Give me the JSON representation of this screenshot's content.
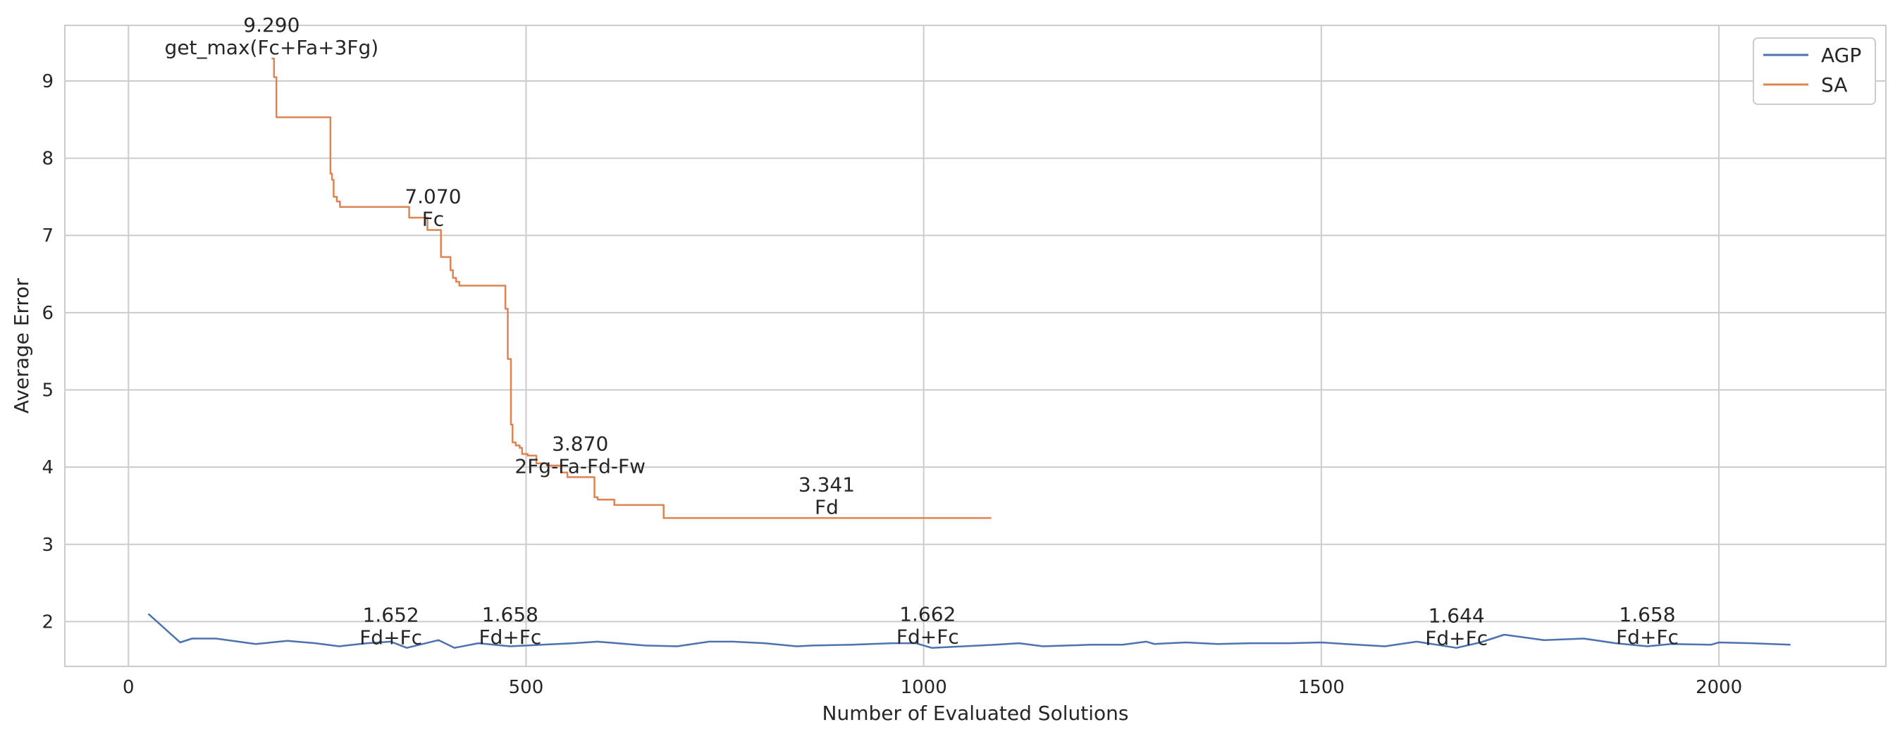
{
  "chart_data": {
    "type": "line",
    "title": "",
    "xlabel": "Number of Evaluated Solutions",
    "ylabel": "Average Error",
    "xlim": [
      -80,
      2210
    ],
    "ylim": [
      1.42,
      9.72
    ],
    "xticks": [
      0,
      500,
      1000,
      1500,
      2000
    ],
    "yticks": [
      2,
      3,
      4,
      5,
      6,
      7,
      8,
      9
    ],
    "grid": true,
    "legend_position": "top-right",
    "colors": {
      "AGP": "#4c72b0",
      "SA": "#dd8452",
      "grid": "#cccccc",
      "axes": "#cccccc"
    },
    "series": [
      {
        "name": "AGP",
        "step": false,
        "points": [
          [
            25,
            2.1
          ],
          [
            65,
            1.73
          ],
          [
            80,
            1.78
          ],
          [
            110,
            1.78
          ],
          [
            160,
            1.71
          ],
          [
            200,
            1.75
          ],
          [
            235,
            1.72
          ],
          [
            265,
            1.68
          ],
          [
            300,
            1.72
          ],
          [
            330,
            1.74
          ],
          [
            350,
            1.66
          ],
          [
            390,
            1.76
          ],
          [
            410,
            1.66
          ],
          [
            440,
            1.72
          ],
          [
            480,
            1.68
          ],
          [
            520,
            1.7
          ],
          [
            560,
            1.72
          ],
          [
            590,
            1.74
          ],
          [
            650,
            1.69
          ],
          [
            690,
            1.68
          ],
          [
            730,
            1.74
          ],
          [
            760,
            1.74
          ],
          [
            800,
            1.72
          ],
          [
            840,
            1.68
          ],
          [
            860,
            1.69
          ],
          [
            910,
            1.7
          ],
          [
            960,
            1.72
          ],
          [
            990,
            1.72
          ],
          [
            1010,
            1.66
          ],
          [
            1050,
            1.68
          ],
          [
            1090,
            1.7
          ],
          [
            1120,
            1.72
          ],
          [
            1150,
            1.68
          ],
          [
            1180,
            1.69
          ],
          [
            1210,
            1.7
          ],
          [
            1250,
            1.7
          ],
          [
            1280,
            1.74
          ],
          [
            1290,
            1.71
          ],
          [
            1330,
            1.73
          ],
          [
            1370,
            1.71
          ],
          [
            1410,
            1.72
          ],
          [
            1460,
            1.72
          ],
          [
            1500,
            1.73
          ],
          [
            1530,
            1.71
          ],
          [
            1580,
            1.68
          ],
          [
            1620,
            1.74
          ],
          [
            1670,
            1.66
          ],
          [
            1700,
            1.73
          ],
          [
            1730,
            1.83
          ],
          [
            1780,
            1.76
          ],
          [
            1830,
            1.78
          ],
          [
            1870,
            1.72
          ],
          [
            1910,
            1.68
          ],
          [
            1940,
            1.71
          ],
          [
            1990,
            1.7
          ],
          [
            2000,
            1.73
          ],
          [
            2040,
            1.72
          ],
          [
            2090,
            1.7
          ]
        ]
      },
      {
        "name": "SA",
        "step": true,
        "points": [
          [
            180,
            9.29
          ],
          [
            183,
            9.05
          ],
          [
            186,
            8.53
          ],
          [
            253,
            8.53
          ],
          [
            254,
            7.8
          ],
          [
            256,
            7.72
          ],
          [
            258,
            7.5
          ],
          [
            262,
            7.44
          ],
          [
            266,
            7.37
          ],
          [
            351,
            7.37
          ],
          [
            353,
            7.23
          ],
          [
            370,
            7.23
          ],
          [
            376,
            7.07
          ],
          [
            390,
            7.07
          ],
          [
            393,
            6.72
          ],
          [
            404,
            6.72
          ],
          [
            405,
            6.55
          ],
          [
            408,
            6.45
          ],
          [
            412,
            6.4
          ],
          [
            416,
            6.35
          ],
          [
            472,
            6.35
          ],
          [
            474,
            6.05
          ],
          [
            477,
            5.4
          ],
          [
            480,
            5.4
          ],
          [
            481,
            4.55
          ],
          [
            483,
            4.32
          ],
          [
            487,
            4.28
          ],
          [
            492,
            4.25
          ],
          [
            495,
            4.17
          ],
          [
            502,
            4.15
          ],
          [
            513,
            4.05
          ],
          [
            526,
            4.02
          ],
          [
            544,
            3.93
          ],
          [
            552,
            3.87
          ],
          [
            584,
            3.87
          ],
          [
            586,
            3.61
          ],
          [
            590,
            3.58
          ],
          [
            610,
            3.58
          ],
          [
            611,
            3.51
          ],
          [
            672,
            3.51
          ],
          [
            673,
            3.341
          ],
          [
            1085,
            3.341
          ]
        ]
      }
    ],
    "annotations": [
      {
        "value": "9.290",
        "expr": "get_max(Fc+Fa+3Fg)",
        "x": 180,
        "y": 9.29
      },
      {
        "value": "7.070",
        "expr": "Fc",
        "x": 383,
        "y": 7.07
      },
      {
        "value": "3.870",
        "expr": "2Fg-Fa-Fd-Fw",
        "x": 568,
        "y": 3.87
      },
      {
        "value": "3.341",
        "expr": "Fd",
        "x": 878,
        "y": 3.341
      },
      {
        "value": "1.652",
        "expr": "Fd+Fc",
        "x": 330,
        "y": 1.652
      },
      {
        "value": "1.658",
        "expr": "Fd+Fc",
        "x": 480,
        "y": 1.658
      },
      {
        "value": "1.662",
        "expr": "Fd+Fc",
        "x": 1005,
        "y": 1.662
      },
      {
        "value": "1.644",
        "expr": "Fd+Fc",
        "x": 1670,
        "y": 1.644
      },
      {
        "value": "1.658",
        "expr": "Fd+Fc",
        "x": 1910,
        "y": 1.658
      }
    ]
  }
}
